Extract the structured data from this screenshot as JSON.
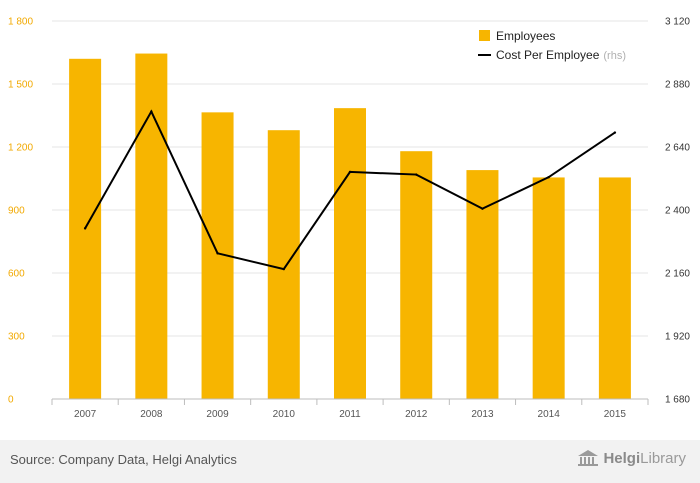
{
  "chart_data": {
    "type": "bar",
    "categories": [
      "2007",
      "2008",
      "2009",
      "2010",
      "2011",
      "2012",
      "2013",
      "2014",
      "2015"
    ],
    "series": [
      {
        "name": "Employees",
        "axis": "left",
        "type": "bar",
        "color": "#f7b500",
        "values": [
          1620,
          1645,
          1365,
          1280,
          1385,
          1180,
          1090,
          1055,
          1055
        ]
      },
      {
        "name": "Cost Per Employee",
        "axis": "right",
        "type": "line",
        "color": "#000000",
        "values": [
          2330,
          2775,
          2235,
          2175,
          2545,
          2535,
          2405,
          2525,
          2695
        ]
      }
    ],
    "y_left": {
      "min": 0,
      "max": 1800,
      "ticks": [
        0,
        300,
        600,
        900,
        1200,
        1500,
        1800
      ]
    },
    "y_right": {
      "min": 1680,
      "max": 3120,
      "ticks": [
        1680,
        1920,
        2160,
        2400,
        2640,
        2880,
        3120
      ]
    },
    "y_left_tick_labels": [
      "0",
      "300",
      "600",
      "900",
      "1 200",
      "1 500",
      "1 800"
    ],
    "y_right_tick_labels": [
      "1 680",
      "1 920",
      "2 160",
      "2 400",
      "2 640",
      "2 880",
      "3 120"
    ],
    "legend": {
      "position": "top-right",
      "items": [
        {
          "label": "Employees",
          "suffix": ""
        },
        {
          "label": "Cost Per Employee",
          "suffix": "(rhs)"
        }
      ]
    },
    "grid": true
  },
  "footer": {
    "source": "Source: Company Data, Helgi Analytics",
    "brand_prefix": "Helgi",
    "brand_suffix": "Library"
  }
}
